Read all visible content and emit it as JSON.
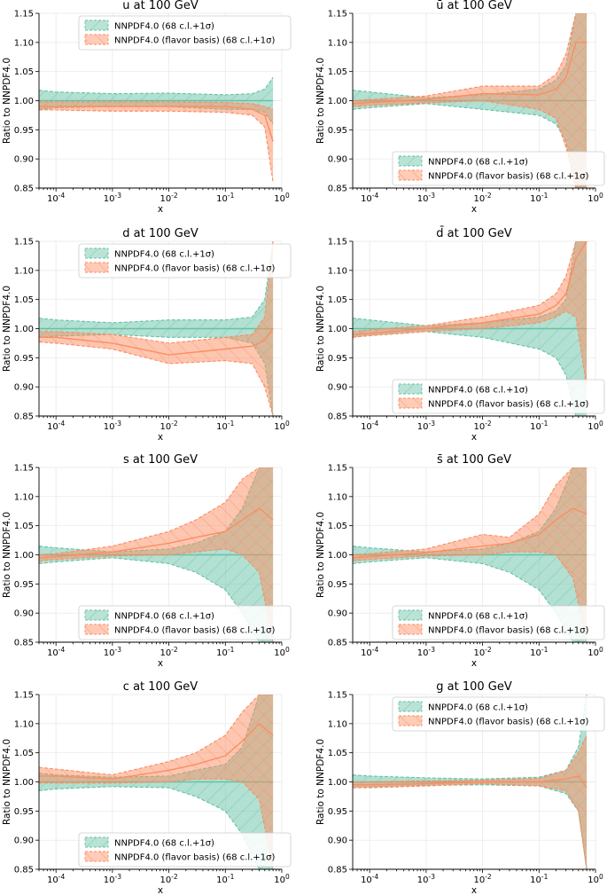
{
  "figure": {
    "grid": "2x4",
    "colors": {
      "nnpdf": "#66c2a5",
      "flavor": "#fc8d62",
      "axis": "#000000",
      "grid": "#e6e6e6"
    }
  },
  "chart_data": [
    {
      "type": "area",
      "title": "u at 100 GeV",
      "xlabel": "x",
      "ylabel": "Ratio to NNPDF4.0",
      "xscale": "log",
      "xlim": [
        5e-05,
        1.0
      ],
      "ylim": [
        0.85,
        1.15
      ],
      "legend": "top-center",
      "yticks": [
        "0.85",
        "0.90",
        "0.95",
        "1.00",
        "1.05",
        "1.10",
        "1.15"
      ],
      "xticks": [
        "10^-4",
        "10^-3",
        "10^-2",
        "10^-1",
        "10^0"
      ],
      "x": [
        5e-05,
        0.0001,
        0.001,
        0.01,
        0.1,
        0.3,
        0.5,
        0.7
      ],
      "series": [
        {
          "name": "NNPDF4.0 (68 c.l.+1σ)",
          "central": [
            1,
            1,
            1,
            1,
            1,
            1,
            1,
            1
          ],
          "upper": [
            1.018,
            1.015,
            1.012,
            1.013,
            1.01,
            1.012,
            1.02,
            1.04
          ],
          "lower": [
            0.985,
            0.988,
            0.99,
            0.99,
            0.985,
            0.985,
            0.98,
            0.96
          ]
        },
        {
          "name": "NNPDF4.0 (flavor basis) (68 c.l.+1σ)",
          "central": [
            0.99,
            0.99,
            0.99,
            0.99,
            0.99,
            0.985,
            0.975,
            0.93
          ],
          "upper": [
            0.998,
            0.998,
            0.998,
            0.998,
            0.997,
            0.995,
            0.99,
            0.985
          ],
          "lower": [
            0.984,
            0.984,
            0.982,
            0.982,
            0.98,
            0.975,
            0.955,
            0.86
          ]
        }
      ]
    },
    {
      "type": "area",
      "title": "ū at 100 GeV",
      "xlabel": "x",
      "ylabel": "Ratio to NNPDF4.0",
      "xscale": "log",
      "xlim": [
        5e-05,
        1.0
      ],
      "ylim": [
        0.85,
        1.15
      ],
      "legend": "bottom-center",
      "yticks": [
        "0.85",
        "0.90",
        "0.95",
        "1.00",
        "1.05",
        "1.10",
        "1.15"
      ],
      "xticks": [
        "10^-4",
        "10^-3",
        "10^-2",
        "10^-1",
        "10^0"
      ],
      "x": [
        5e-05,
        0.0001,
        0.001,
        0.01,
        0.1,
        0.2,
        0.3,
        0.45,
        0.7
      ],
      "series": [
        {
          "name": "NNPDF4.0 (68 c.l.+1σ)",
          "central": [
            1,
            1,
            1,
            1,
            1,
            1,
            1,
            1,
            1
          ],
          "upper": [
            1.018,
            1.015,
            1.005,
            1.01,
            1.02,
            1.035,
            1.06,
            1.15,
            1.15
          ],
          "lower": [
            0.985,
            0.988,
            0.995,
            0.985,
            0.975,
            0.96,
            0.93,
            0.85,
            0.85
          ]
        },
        {
          "name": "NNPDF4.0 (flavor basis) (68 c.l.+1σ)",
          "central": [
            0.995,
            0.997,
            1.002,
            1.012,
            1.01,
            1.02,
            1.04,
            1.1,
            1.1
          ],
          "upper": [
            1.0,
            1.002,
            1.008,
            1.025,
            1.025,
            1.045,
            1.08,
            1.15,
            1.15
          ],
          "lower": [
            0.99,
            0.992,
            0.996,
            1.0,
            0.985,
            0.97,
            0.92,
            0.85,
            0.85
          ]
        }
      ]
    },
    {
      "type": "area",
      "title": "d at 100 GeV",
      "xlabel": "x",
      "ylabel": "Ratio to NNPDF4.0",
      "xscale": "log",
      "xlim": [
        5e-05,
        1.0
      ],
      "ylim": [
        0.85,
        1.15
      ],
      "legend": "top-center",
      "yticks": [
        "0.85",
        "0.90",
        "0.95",
        "1.00",
        "1.05",
        "1.10",
        "1.15"
      ],
      "xticks": [
        "10^-4",
        "10^-3",
        "10^-2",
        "10^-1",
        "10^0"
      ],
      "x": [
        5e-05,
        0.0001,
        0.001,
        0.01,
        0.1,
        0.3,
        0.5,
        0.7
      ],
      "series": [
        {
          "name": "NNPDF4.0 (68 c.l.+1σ)",
          "central": [
            1,
            1,
            1,
            1,
            1,
            1,
            1,
            1
          ],
          "upper": [
            1.018,
            1.015,
            1.01,
            1.015,
            1.015,
            1.02,
            1.05,
            1.15
          ],
          "lower": [
            0.985,
            0.987,
            0.99,
            0.985,
            0.985,
            0.975,
            0.94,
            0.85
          ]
        },
        {
          "name": "NNPDF4.0 (flavor basis) (68 c.l.+1σ)",
          "central": [
            0.985,
            0.985,
            0.975,
            0.955,
            0.965,
            0.97,
            0.98,
            1.0
          ],
          "upper": [
            0.995,
            0.995,
            0.99,
            0.975,
            0.985,
            0.99,
            1.02,
            1.15
          ],
          "lower": [
            0.977,
            0.975,
            0.965,
            0.94,
            0.945,
            0.94,
            0.9,
            0.85
          ]
        }
      ]
    },
    {
      "type": "area",
      "title": "d̄ at 100 GeV",
      "xlabel": "x",
      "ylabel": "Ratio to NNPDF4.0",
      "xscale": "log",
      "xlim": [
        5e-05,
        1.0
      ],
      "ylim": [
        0.85,
        1.15
      ],
      "legend": "bottom-center",
      "yticks": [
        "0.85",
        "0.90",
        "0.95",
        "1.00",
        "1.05",
        "1.10",
        "1.15"
      ],
      "xticks": [
        "10^-4",
        "10^-3",
        "10^-2",
        "10^-1",
        "10^0"
      ],
      "x": [
        5e-05,
        0.0001,
        0.001,
        0.01,
        0.1,
        0.2,
        0.3,
        0.45,
        0.7
      ],
      "series": [
        {
          "name": "NNPDF4.0 (68 c.l.+1σ)",
          "central": [
            1,
            1,
            1,
            1,
            1,
            1,
            1,
            1,
            1
          ],
          "upper": [
            1.018,
            1.015,
            1.005,
            1.01,
            1.02,
            1.03,
            1.05,
            1.15,
            1.15
          ],
          "lower": [
            0.985,
            0.988,
            0.995,
            0.985,
            0.965,
            0.95,
            0.92,
            0.85,
            0.85
          ]
        },
        {
          "name": "NNPDF4.0 (flavor basis) (68 c.l.+1σ)",
          "central": [
            0.99,
            0.992,
            1.0,
            1.01,
            1.025,
            1.04,
            1.06,
            1.12,
            1.15
          ],
          "upper": [
            0.995,
            0.998,
            1.005,
            1.02,
            1.04,
            1.06,
            1.09,
            1.15,
            1.15
          ],
          "lower": [
            0.985,
            0.988,
            0.995,
            1.0,
            1.01,
            1.02,
            1.03,
            1.02,
            0.9
          ]
        }
      ]
    },
    {
      "type": "area",
      "title": "s at 100 GeV",
      "xlabel": "x",
      "ylabel": "Ratio to NNPDF4.0",
      "xscale": "log",
      "xlim": [
        5e-05,
        1.0
      ],
      "ylim": [
        0.85,
        1.15
      ],
      "legend": "bottom-center",
      "yticks": [
        "0.85",
        "0.90",
        "0.95",
        "1.00",
        "1.05",
        "1.10",
        "1.15"
      ],
      "xticks": [
        "10^-4",
        "10^-3",
        "10^-2",
        "10^-1",
        "10^0"
      ],
      "x": [
        5e-05,
        0.0001,
        0.001,
        0.01,
        0.03,
        0.1,
        0.2,
        0.4,
        0.7
      ],
      "series": [
        {
          "name": "NNPDF4.0 (68 c.l.+1σ)",
          "central": [
            1,
            1,
            1,
            1,
            1,
            1,
            1,
            1,
            1
          ],
          "upper": [
            1.015,
            1.012,
            1.005,
            1.01,
            1.02,
            1.04,
            1.08,
            1.15,
            1.15
          ],
          "lower": [
            0.985,
            0.988,
            0.995,
            0.985,
            0.97,
            0.94,
            0.9,
            0.85,
            0.85
          ]
        },
        {
          "name": "NNPDF4.0 (flavor basis) (68 c.l.+1σ)",
          "central": [
            0.995,
            0.997,
            1.005,
            1.02,
            1.03,
            1.04,
            1.06,
            1.08,
            1.06
          ],
          "upper": [
            1.0,
            1.002,
            1.015,
            1.04,
            1.06,
            1.09,
            1.13,
            1.15,
            1.15
          ],
          "lower": [
            0.99,
            0.992,
            0.998,
            1.0,
            1.005,
            1.01,
            1.0,
            0.97,
            0.85
          ]
        }
      ]
    },
    {
      "type": "area",
      "title": "s̄ at 100 GeV",
      "xlabel": "x",
      "ylabel": "Ratio to NNPDF4.0",
      "xscale": "log",
      "xlim": [
        5e-05,
        1.0
      ],
      "ylim": [
        0.85,
        1.15
      ],
      "legend": "bottom-center",
      "yticks": [
        "0.85",
        "0.90",
        "0.95",
        "1.00",
        "1.05",
        "1.10",
        "1.15"
      ],
      "xticks": [
        "10^-4",
        "10^-3",
        "10^-2",
        "10^-1",
        "10^0"
      ],
      "x": [
        5e-05,
        0.0001,
        0.001,
        0.01,
        0.03,
        0.1,
        0.2,
        0.4,
        0.7
      ],
      "series": [
        {
          "name": "NNPDF4.0 (68 c.l.+1σ)",
          "central": [
            1,
            1,
            1,
            1,
            1,
            1,
            1,
            1,
            1
          ],
          "upper": [
            1.015,
            1.012,
            1.005,
            1.01,
            1.02,
            1.04,
            1.08,
            1.15,
            1.15
          ],
          "lower": [
            0.985,
            0.988,
            0.995,
            0.985,
            0.97,
            0.94,
            0.9,
            0.85,
            0.85
          ]
        },
        {
          "name": "NNPDF4.0 (flavor basis) (68 c.l.+1σ)",
          "central": [
            0.995,
            0.997,
            1.004,
            1.015,
            1.02,
            1.035,
            1.06,
            1.08,
            1.07
          ],
          "upper": [
            1.0,
            1.002,
            1.01,
            1.035,
            1.03,
            1.07,
            1.12,
            1.15,
            1.15
          ],
          "lower": [
            0.99,
            0.992,
            0.998,
            1.0,
            1.005,
            1.005,
            1.0,
            0.96,
            0.85
          ]
        }
      ]
    },
    {
      "type": "area",
      "title": "c at 100 GeV",
      "xlabel": "x",
      "ylabel": "Ratio to NNPDF4.0",
      "xscale": "log",
      "xlim": [
        5e-05,
        1.0
      ],
      "ylim": [
        0.85,
        1.15
      ],
      "legend": "bottom-center",
      "yticks": [
        "0.85",
        "0.90",
        "0.95",
        "1.00",
        "1.05",
        "1.10",
        "1.15"
      ],
      "xticks": [
        "10^-4",
        "10^-3",
        "10^-2",
        "10^-1",
        "10^0"
      ],
      "x": [
        5e-05,
        0.0001,
        0.001,
        0.01,
        0.03,
        0.1,
        0.2,
        0.4,
        0.7
      ],
      "series": [
        {
          "name": "NNPDF4.0 (68 c.l.+1σ)",
          "central": [
            1,
            1,
            1,
            1,
            1,
            1,
            1,
            1,
            1
          ],
          "upper": [
            1.015,
            1.012,
            1.008,
            1.01,
            1.02,
            1.03,
            1.06,
            1.15,
            1.15
          ],
          "lower": [
            0.985,
            0.988,
            0.992,
            0.99,
            0.975,
            0.95,
            0.91,
            0.85,
            0.85
          ]
        },
        {
          "name": "NNPDF4.0 (flavor basis) (68 c.l.+1σ)",
          "central": [
            1.01,
            1.01,
            1.005,
            1.02,
            1.03,
            1.045,
            1.07,
            1.1,
            1.08
          ],
          "upper": [
            1.025,
            1.022,
            1.012,
            1.035,
            1.05,
            1.08,
            1.12,
            1.15,
            1.15
          ],
          "lower": [
            0.998,
            0.998,
            0.998,
            1.0,
            1.005,
            1.005,
            1.0,
            0.97,
            0.85
          ]
        }
      ]
    },
    {
      "type": "area",
      "title": "g at 100 GeV",
      "xlabel": "x",
      "ylabel": "Ratio to NNPDF4.0",
      "xscale": "log",
      "xlim": [
        5e-05,
        1.0
      ],
      "ylim": [
        0.85,
        1.15
      ],
      "legend": "top-center",
      "yticks": [
        "0.85",
        "0.90",
        "0.95",
        "1.00",
        "1.05",
        "1.10",
        "1.15"
      ],
      "xticks": [
        "10^-4",
        "10^-3",
        "10^-2",
        "10^-1",
        "10^0"
      ],
      "x": [
        5e-05,
        0.0001,
        0.001,
        0.01,
        0.1,
        0.3,
        0.5,
        0.7
      ],
      "series": [
        {
          "name": "NNPDF4.0 (68 c.l.+1σ)",
          "central": [
            1,
            1,
            1,
            1,
            1,
            1,
            1,
            1
          ],
          "upper": [
            1.012,
            1.01,
            1.007,
            1.005,
            1.008,
            1.02,
            1.06,
            1.15
          ],
          "lower": [
            0.99,
            0.991,
            0.994,
            0.995,
            0.993,
            0.98,
            0.95,
            0.85
          ]
        },
        {
          "name": "NNPDF4.0 (flavor basis) (68 c.l.+1σ)",
          "central": [
            0.995,
            0.995,
            0.997,
            1.0,
            1.0,
            1.005,
            1.01,
            0.99
          ],
          "upper": [
            1.0,
            1.0,
            1.002,
            1.003,
            1.006,
            1.02,
            1.05,
            1.08
          ],
          "lower": [
            0.99,
            0.99,
            0.993,
            0.997,
            0.993,
            0.985,
            0.95,
            0.85
          ]
        }
      ]
    }
  ]
}
